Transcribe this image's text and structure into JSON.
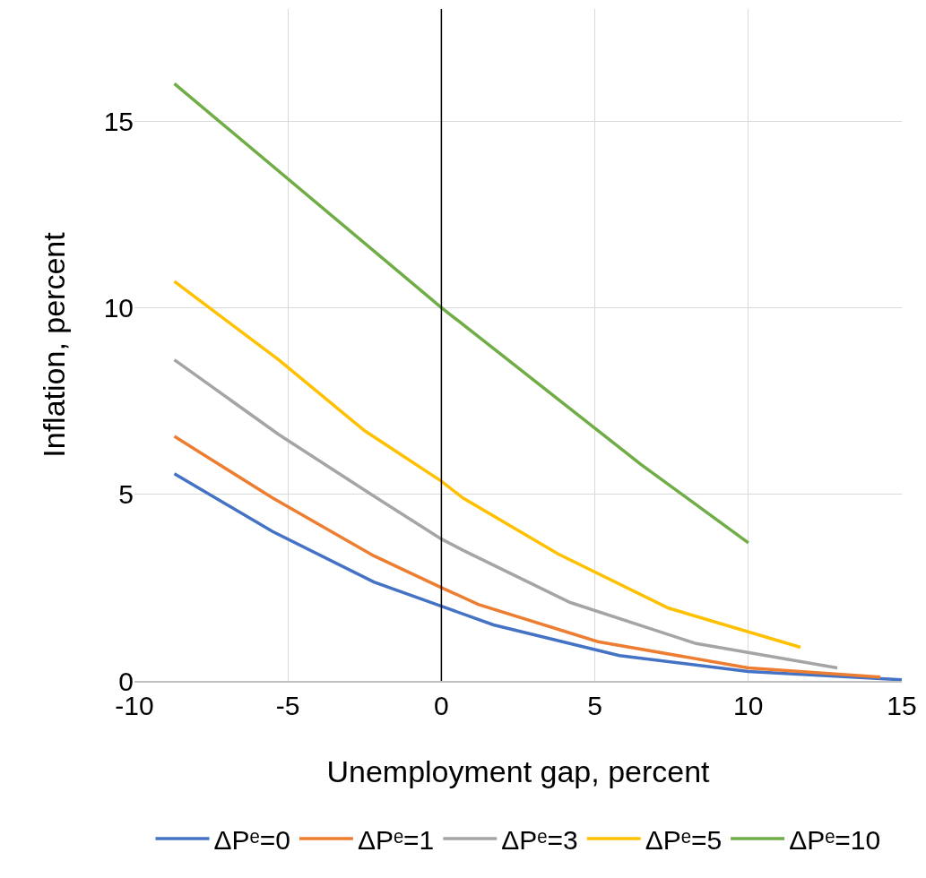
{
  "chart_data": {
    "type": "line",
    "xlabel": "Unemployment gap, percent",
    "ylabel": "Inflation, percent",
    "xlim": [
      -10,
      15
    ],
    "xticks": [
      -10,
      -5,
      0,
      5,
      10,
      15
    ],
    "ylim": [
      0,
      18
    ],
    "yticks": [
      0,
      5,
      10,
      15
    ],
    "grid": true,
    "legend": "bottom",
    "marker": "none",
    "line_style": "solid",
    "ref_lines": [
      {
        "axis": "x",
        "value": 0,
        "color": "#000000"
      }
    ],
    "series": [
      {
        "name": "ΔPᵉ=0",
        "color": "#4472c4",
        "x": [
          -8.7,
          -5.5,
          -2.2,
          0,
          1.7,
          5.8,
          10,
          15
        ],
        "values": [
          5.55,
          4.0,
          2.65,
          2.0,
          1.5,
          0.68,
          0.25,
          0.03
        ]
      },
      {
        "name": "ΔPᵉ=1",
        "color": "#ed7d31",
        "x": [
          -8.7,
          -5.5,
          -2.2,
          0,
          1.2,
          5.1,
          10,
          14.3
        ],
        "values": [
          6.55,
          4.9,
          3.35,
          2.5,
          2.05,
          1.05,
          0.35,
          0.1
        ]
      },
      {
        "name": "ΔPᵉ=3",
        "color": "#a5a5a5",
        "x": [
          -8.7,
          -5.3,
          -2.2,
          0,
          0.7,
          4.2,
          8.3,
          12.9
        ],
        "values": [
          8.6,
          6.6,
          4.95,
          3.8,
          3.5,
          2.1,
          1.0,
          0.35
        ]
      },
      {
        "name": "ΔPᵉ=5",
        "color": "#ffc000",
        "x": [
          -8.7,
          -5.3,
          -2.5,
          0,
          0.7,
          3.8,
          7.4,
          11.7
        ],
        "values": [
          10.7,
          8.6,
          6.7,
          5.35,
          4.9,
          3.4,
          1.95,
          0.9
        ]
      },
      {
        "name": "ΔPᵉ=10",
        "color": "#70ad47",
        "x": [
          -8.7,
          0,
          6.5,
          10
        ],
        "values": [
          16.0,
          10.0,
          5.8,
          3.7
        ]
      }
    ]
  }
}
